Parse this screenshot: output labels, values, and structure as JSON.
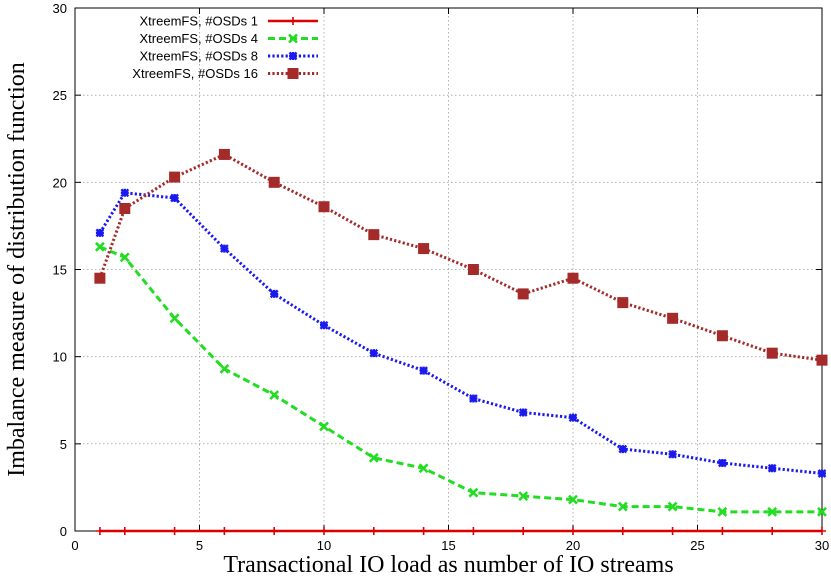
{
  "chart_data": {
    "type": "line",
    "title": "",
    "xlabel": "Transactional IO load as number of IO streams",
    "ylabel": "Imbalance measure of distribution function",
    "xlim": [
      0,
      30
    ],
    "ylim": [
      0,
      30
    ],
    "xticks": [
      0,
      5,
      10,
      15,
      20,
      25,
      30
    ],
    "yticks": [
      0,
      5,
      10,
      15,
      20,
      25,
      30
    ],
    "grid": true,
    "legend_position": "top-left",
    "x": [
      1,
      2,
      4,
      6,
      8,
      10,
      12,
      14,
      16,
      18,
      20,
      22,
      24,
      26,
      28,
      30
    ],
    "series": [
      {
        "name": "XtreemFS, #OSDs 1",
        "color": "#dd0000",
        "line_style": "solid",
        "marker": "plus",
        "values": [
          0,
          0,
          0,
          0,
          0,
          0,
          0,
          0,
          0,
          0,
          0,
          0,
          0,
          0,
          0,
          0
        ]
      },
      {
        "name": "XtreemFS, #OSDs 4",
        "color": "#22dd22",
        "line_style": "dashed",
        "marker": "x",
        "values": [
          16.3,
          15.7,
          12.2,
          9.3,
          7.8,
          6.0,
          4.2,
          3.6,
          2.2,
          2.0,
          1.8,
          1.4,
          1.4,
          1.1,
          1.1,
          1.1
        ]
      },
      {
        "name": "XtreemFS, #OSDs 8",
        "color": "#1a1aee",
        "line_style": "dotted",
        "marker": "star",
        "values": [
          17.1,
          19.4,
          19.1,
          16.2,
          13.6,
          11.8,
          10.2,
          9.2,
          7.6,
          6.8,
          6.5,
          4.7,
          4.4,
          3.9,
          3.6,
          3.3
        ]
      },
      {
        "name": "XtreemFS, #OSDs 16",
        "color": "#a52a2a",
        "line_style": "dotted",
        "marker": "square",
        "values": [
          14.5,
          18.5,
          20.3,
          21.6,
          20.0,
          18.6,
          17.0,
          16.2,
          15.0,
          13.6,
          14.5,
          13.1,
          12.2,
          11.2,
          10.2,
          9.8
        ]
      }
    ]
  }
}
